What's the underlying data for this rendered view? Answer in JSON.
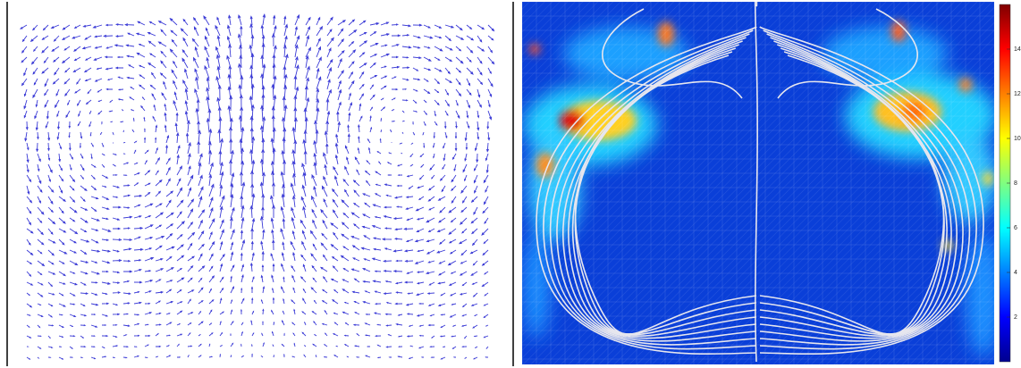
{
  "colorbar": {
    "range": [
      0,
      16
    ],
    "ticks": [
      2,
      4,
      6,
      8,
      10,
      12,
      14
    ]
  }
}
